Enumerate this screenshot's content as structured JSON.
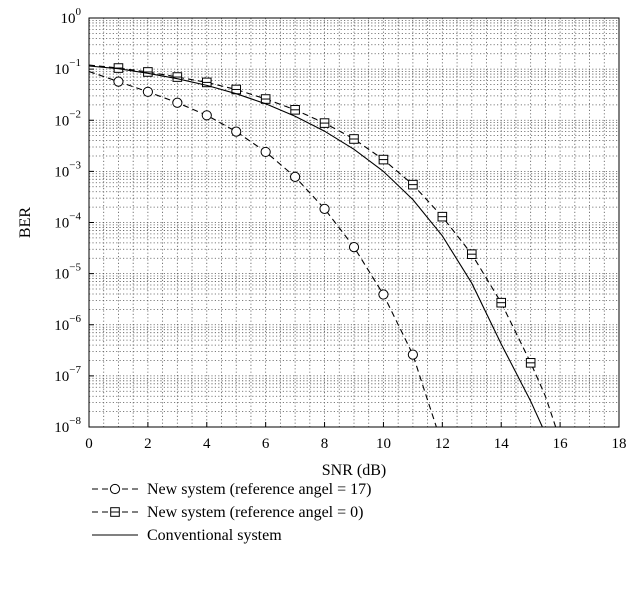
{
  "chart_data": {
    "type": "line",
    "title": "",
    "xlabel": "SNR (dB)",
    "ylabel": "BER",
    "xlim": [
      0,
      18
    ],
    "ylim": [
      1e-08,
      1
    ],
    "yscale": "log",
    "grid": true,
    "legend_position": "below",
    "xticks": [
      "0",
      "2",
      "4",
      "6",
      "8",
      "10",
      "12",
      "14",
      "16",
      "18"
    ],
    "yticks": [
      {
        "base": "10",
        "exp": "−8",
        "value": 1e-08
      },
      {
        "base": "10",
        "exp": "−7",
        "value": 1e-07
      },
      {
        "base": "10",
        "exp": "−6",
        "value": 1e-06
      },
      {
        "base": "10",
        "exp": "−5",
        "value": 1e-05
      },
      {
        "base": "10",
        "exp": "−4",
        "value": 0.0001
      },
      {
        "base": "10",
        "exp": "−3",
        "value": 0.001
      },
      {
        "base": "10",
        "exp": "−2",
        "value": 0.01
      },
      {
        "base": "10",
        "exp": "−1",
        "value": 0.1
      },
      {
        "base": "10",
        "exp": "0",
        "value": 1
      }
    ],
    "series": [
      {
        "name": "New system (reference angel = 17)",
        "line_style": "dashed",
        "marker": "circle",
        "x": [
          0,
          1,
          2,
          3,
          4,
          5,
          6,
          7,
          8,
          9,
          10,
          11,
          11.4,
          11.8
        ],
        "y": [
          0.09,
          0.057,
          0.036,
          0.022,
          0.0125,
          0.006,
          0.0024,
          0.00078,
          0.000185,
          3.3e-05,
          3.9e-06,
          2.6e-07,
          5e-08,
          1e-08
        ],
        "markers_x": [
          1,
          2,
          3,
          4,
          5,
          6,
          7,
          8,
          9,
          10,
          11
        ],
        "markers_y": [
          0.057,
          0.036,
          0.022,
          0.0125,
          0.006,
          0.0024,
          0.00078,
          0.000185,
          3.3e-05,
          3.9e-06,
          2.6e-07
        ]
      },
      {
        "name": "New system (reference angel = 0)",
        "line_style": "dashed",
        "marker": "square",
        "x": [
          0,
          1,
          2,
          3,
          4,
          5,
          6,
          7,
          8,
          9,
          10,
          11,
          12,
          13,
          14,
          15,
          15.5,
          15.85
        ],
        "y": [
          0.12,
          0.105,
          0.088,
          0.07,
          0.055,
          0.04,
          0.026,
          0.016,
          0.0088,
          0.0043,
          0.0017,
          0.00055,
          0.00013,
          2.4e-05,
          2.7e-06,
          1.8e-07,
          4e-08,
          1e-08
        ],
        "markers_x": [
          1,
          2,
          3,
          4,
          5,
          6,
          7,
          8,
          9,
          10,
          11,
          12,
          13,
          14,
          15
        ],
        "markers_y": [
          0.105,
          0.088,
          0.07,
          0.055,
          0.04,
          0.026,
          0.016,
          0.0088,
          0.0043,
          0.0017,
          0.00055,
          0.00013,
          2.4e-05,
          2.7e-06,
          1.8e-07
        ]
      },
      {
        "name": "Conventional system",
        "line_style": "solid",
        "marker": "none",
        "x": [
          0,
          1,
          2,
          3,
          4,
          5,
          6,
          7,
          8,
          9,
          10,
          11,
          12,
          13,
          14,
          15,
          15.4
        ],
        "y": [
          0.115,
          0.102,
          0.083,
          0.065,
          0.048,
          0.033,
          0.021,
          0.012,
          0.0061,
          0.0027,
          0.001,
          0.00028,
          5.5e-05,
          6.5e-06,
          4.2e-07,
          3.2e-08,
          1e-08
        ]
      }
    ]
  }
}
